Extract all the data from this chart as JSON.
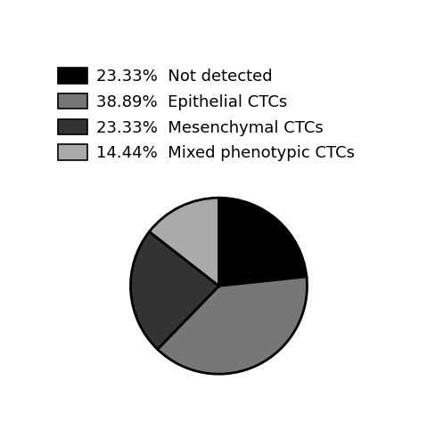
{
  "slices": [
    23.33,
    38.89,
    23.33,
    14.44
  ],
  "colors": [
    "#000000",
    "#777777",
    "#333333",
    "#aaaaaa"
  ],
  "labels": [
    "Not detected",
    "Epithelial CTCs",
    "Mesenchymal CTCs",
    "Mixed phenotypic CTCs"
  ],
  "percentages": [
    "23.33%",
    "38.89%",
    "23.33%",
    "14.44%"
  ],
  "legend_fontsize": 13,
  "edge_color": "#000000",
  "edge_width": 2.0,
  "start_angle": 90,
  "figure_bg": "#ffffff"
}
